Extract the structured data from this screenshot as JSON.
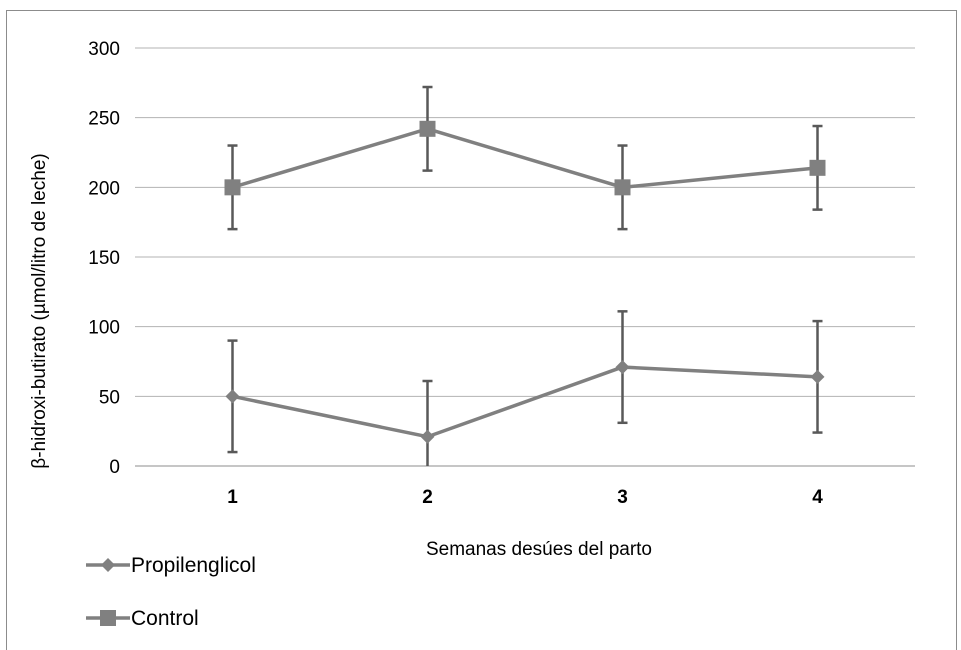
{
  "chart_data": {
    "type": "line",
    "title": "",
    "xlabel": "Semanas desúes del parto",
    "ylabel": "β-hidroxi-butirato (µmol/litro de leche)",
    "categories": [
      "1",
      "2",
      "3",
      "4"
    ],
    "ylim": [
      0,
      300
    ],
    "yticks": [
      0,
      50,
      100,
      150,
      200,
      250,
      300
    ],
    "grid": true,
    "legend_position": "bottom-left",
    "series": [
      {
        "name": "Propilenglicol",
        "marker": "diamond",
        "color": "#808080",
        "values": [
          50,
          21,
          71,
          64
        ],
        "error": [
          40,
          40,
          40,
          40
        ]
      },
      {
        "name": "Control",
        "marker": "square",
        "color": "#808080",
        "values": [
          200,
          242,
          200,
          214
        ],
        "error": [
          30,
          30,
          30,
          30
        ]
      }
    ],
    "errorbar_color": "#595959"
  }
}
